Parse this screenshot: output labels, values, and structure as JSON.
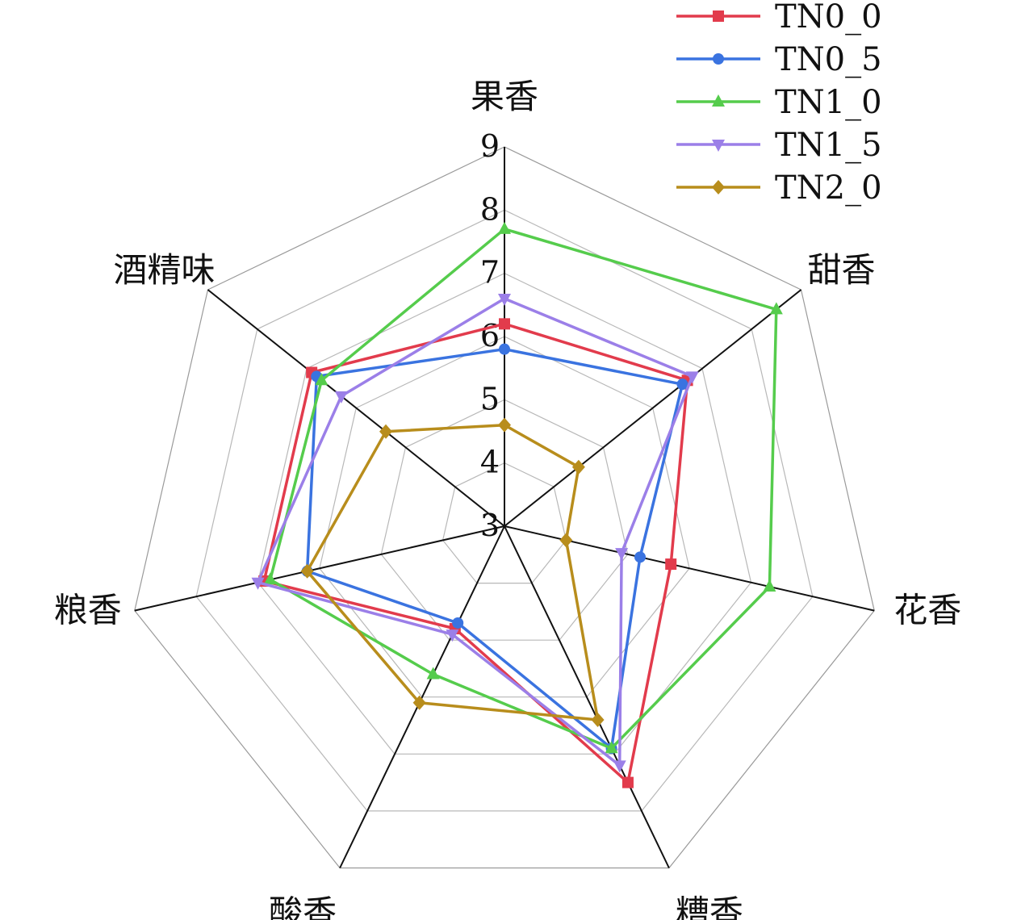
{
  "chart_data": {
    "type": "radar",
    "title": "",
    "axes": [
      "果香",
      "甜香",
      "花香",
      "糟香",
      "酸香",
      "粮香",
      "酒精味"
    ],
    "scale": {
      "min": 3,
      "max": 9,
      "ticks": [
        3,
        4,
        5,
        6,
        7,
        8,
        9
      ]
    },
    "grid": true,
    "legend_position": "top-right",
    "series": [
      {
        "name": "TN0_0",
        "color": "#e23b4c",
        "marker": "square",
        "values": [
          6.2,
          6.7,
          5.7,
          7.5,
          4.8,
          6.9,
          6.9
        ]
      },
      {
        "name": "TN0_5",
        "color": "#3a73e0",
        "marker": "circle",
        "values": [
          5.8,
          6.6,
          5.2,
          6.9,
          4.7,
          6.2,
          6.8
        ]
      },
      {
        "name": "TN1_0",
        "color": "#55cc4c",
        "marker": "triangle-up",
        "values": [
          7.7,
          8.5,
          7.3,
          6.9,
          5.6,
          6.8,
          6.7
        ]
      },
      {
        "name": "TN1_5",
        "color": "#9b7fe8",
        "marker": "triangle-down",
        "values": [
          6.6,
          6.8,
          4.9,
          7.2,
          4.9,
          7.0,
          6.3
        ]
      },
      {
        "name": "TN2_0",
        "color": "#b88d1c",
        "marker": "diamond",
        "values": [
          4.6,
          4.5,
          4.0,
          6.4,
          6.1,
          6.2,
          5.4
        ]
      }
    ]
  }
}
